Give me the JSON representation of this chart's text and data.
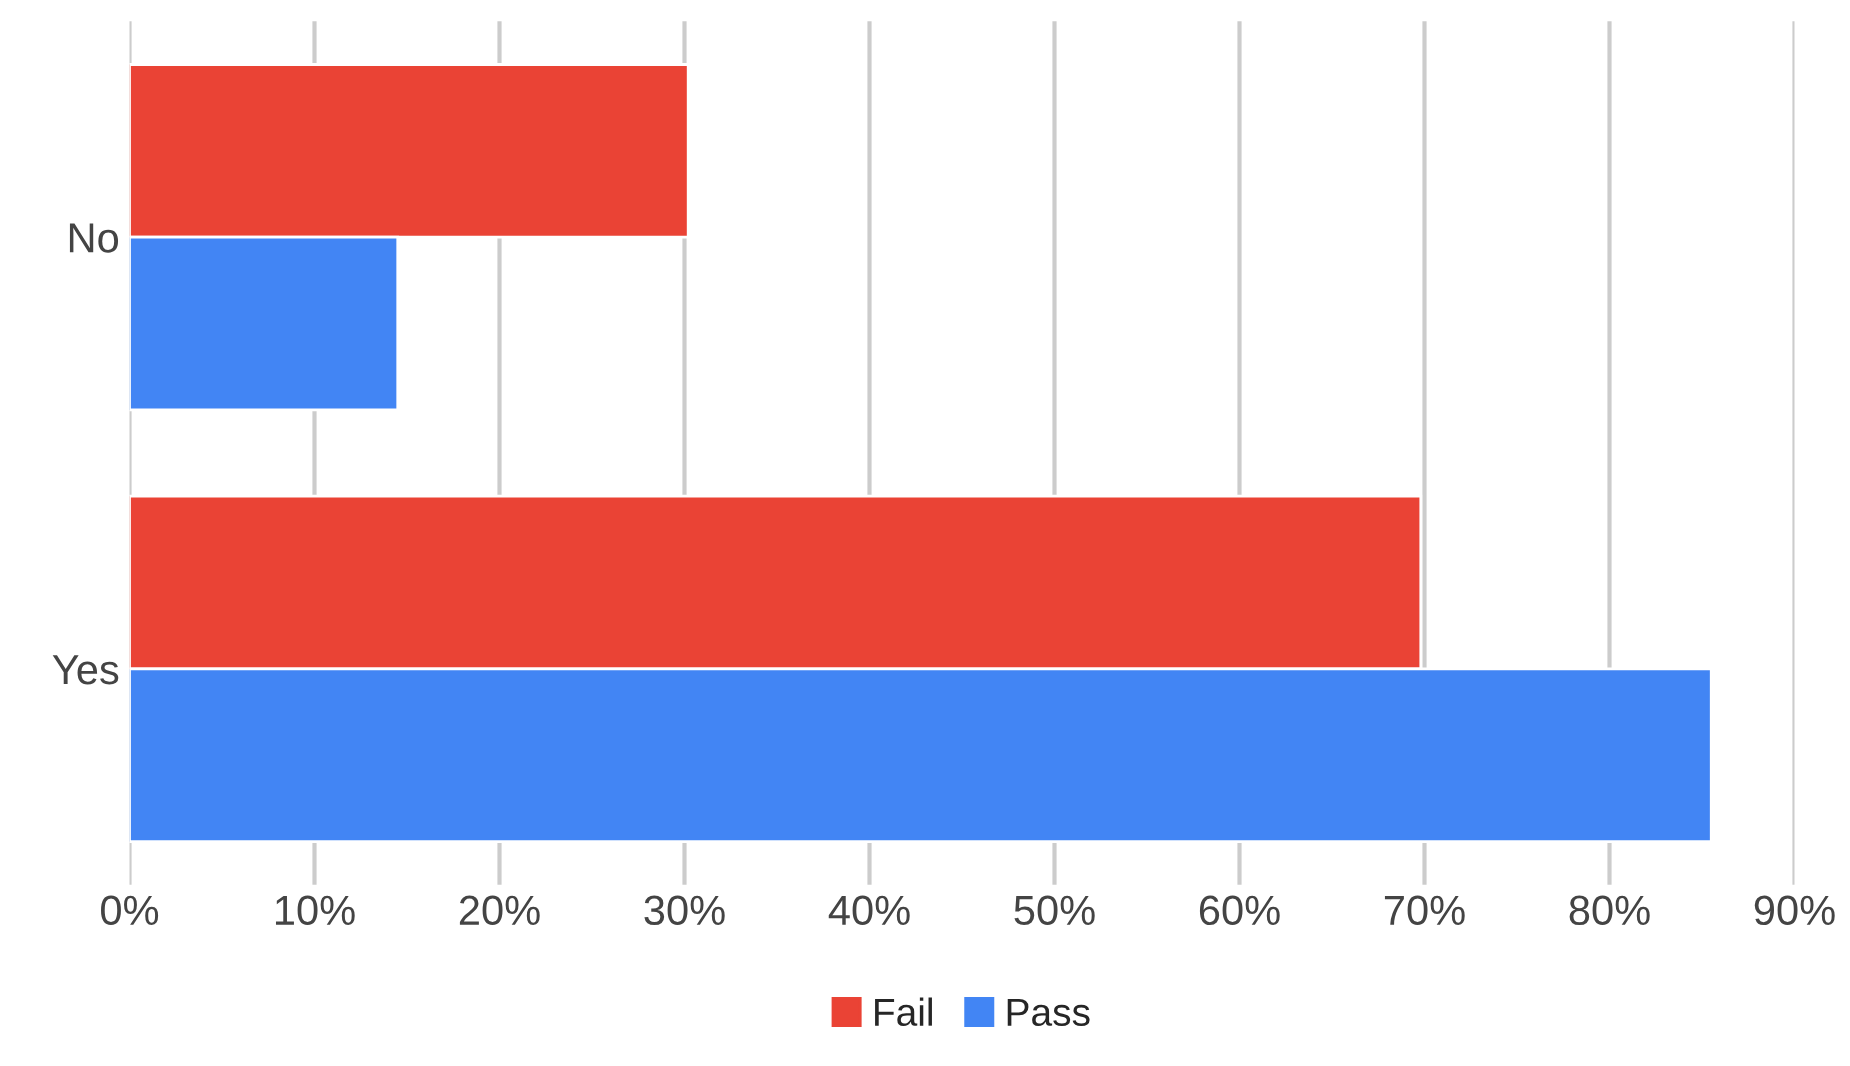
{
  "chart_data": {
    "type": "bar",
    "orientation": "horizontal",
    "categories": [
      "No",
      "Yes"
    ],
    "series": [
      {
        "name": "Fail",
        "color": "#ea4335",
        "values": [
          30.2,
          69.8
        ]
      },
      {
        "name": "Pass",
        "color": "#4285f4",
        "values": [
          14.5,
          85.5
        ]
      }
    ],
    "xlim": [
      0,
      90
    ],
    "xticks": [
      {
        "value": 0,
        "label": "0%"
      },
      {
        "value": 10,
        "label": "10%"
      },
      {
        "value": 20,
        "label": "20%"
      },
      {
        "value": 30,
        "label": "30%"
      },
      {
        "value": 40,
        "label": "40%"
      },
      {
        "value": 50,
        "label": "50%"
      },
      {
        "value": 60,
        "label": "60%"
      },
      {
        "value": 70,
        "label": "70%"
      },
      {
        "value": 80,
        "label": "80%"
      },
      {
        "value": 90,
        "label": "90%"
      }
    ],
    "grid": "x",
    "legend": "bottom"
  }
}
